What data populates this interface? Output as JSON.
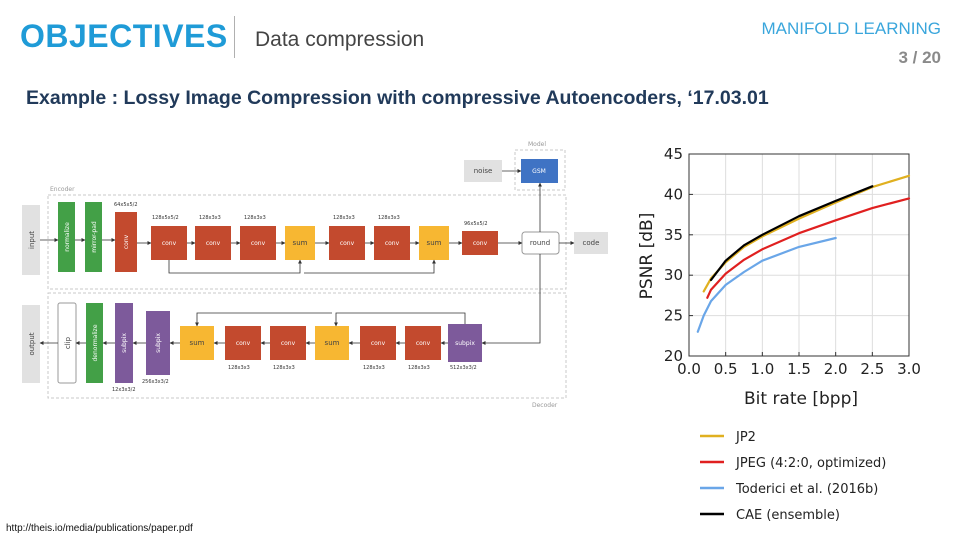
{
  "header": {
    "title": "OBJECTIVES",
    "subtitle": "Data compression",
    "course": "MANIFOLD LEARNING",
    "page": "3 / 20"
  },
  "heading": "Example : Lossy Image Compression with compressive Autoencoders, ‘17.03.01",
  "footer": {
    "url": "http://theis.io/media/publications/paper.pdf"
  },
  "diagram": {
    "regions": {
      "model": "Model",
      "encoder": "Encoder",
      "decoder": "Decoder"
    },
    "encoder_row": {
      "input": "input",
      "normalize": "normalize",
      "mirror_pad": "mirror-pad",
      "conv1": "conv",
      "conv1_dim": "64x5x5/2",
      "conv2": "conv",
      "conv2_dim": "128x5x5/2",
      "conv3": "conv",
      "conv3_dim": "128x3x3",
      "conv4": "conv",
      "conv4_dim": "128x3x3",
      "sum1": "sum",
      "conv5": "conv",
      "conv5_dim": "128x3x3",
      "conv6": "conv",
      "conv6_dim": "128x3x3",
      "sum2": "sum",
      "conv7": "conv",
      "conv7_dim": "96x5x5/2",
      "round": "round",
      "code": "code",
      "noise": "noise",
      "gsm": "GSM"
    },
    "decoder_row": {
      "output": "output",
      "clip": "clip",
      "denormalize": "denormalize",
      "subpix1": "subpix",
      "subpix1_dim": "12x3x3/2",
      "subpix2": "subpix",
      "subpix2_dim": "256x3x3/2",
      "sum1": "sum",
      "conv1": "conv",
      "conv1_dim": "128x3x3",
      "conv2": "conv",
      "conv2_dim": "128x3x3",
      "sum2": "sum",
      "conv3": "conv",
      "conv3_dim": "128x3x3",
      "conv4": "conv",
      "conv4_dim": "128x3x3",
      "subpix3": "subpix",
      "subpix3_dim": "512x3x3/2"
    }
  },
  "chart_data": {
    "type": "line",
    "xlabel": "Bit rate [bpp]",
    "ylabel": "PSNR [dB]",
    "xlim": [
      0.0,
      3.0
    ],
    "ylim": [
      20,
      45
    ],
    "xticks": [
      "0.0",
      "0.5",
      "1.0",
      "1.5",
      "2.0",
      "2.5",
      "3.0"
    ],
    "yticks": [
      "20",
      "25",
      "30",
      "35",
      "40",
      "45"
    ],
    "grid": true,
    "legend_position": "bottom",
    "series": [
      {
        "name": "JP2",
        "color": "#e0b020",
        "x": [
          0.2,
          0.3,
          0.5,
          0.75,
          1.0,
          1.5,
          2.0,
          2.5,
          3.0
        ],
        "y": [
          28.0,
          29.6,
          31.6,
          33.5,
          34.8,
          37.0,
          39.0,
          40.9,
          42.3
        ]
      },
      {
        "name": "JPEG (4:2:0, optimized)",
        "color": "#e02020",
        "x": [
          0.25,
          0.3,
          0.5,
          0.75,
          1.0,
          1.5,
          2.0,
          2.5,
          3.0
        ],
        "y": [
          27.2,
          28.2,
          30.2,
          31.9,
          33.2,
          35.2,
          36.8,
          38.3,
          39.5
        ]
      },
      {
        "name": "Toderici et al. (2016b)",
        "color": "#6aa6e8",
        "x": [
          0.12,
          0.2,
          0.3,
          0.5,
          0.75,
          1.0,
          1.5,
          2.0
        ],
        "y": [
          23.0,
          25.0,
          26.8,
          28.8,
          30.4,
          31.8,
          33.5,
          34.6
        ]
      },
      {
        "name": "CAE (ensemble)",
        "color": "#000000",
        "x": [
          0.3,
          0.5,
          0.75,
          1.0,
          1.5,
          2.0,
          2.5
        ],
        "y": [
          29.4,
          31.8,
          33.7,
          35.0,
          37.3,
          39.2,
          41.0
        ]
      }
    ]
  }
}
